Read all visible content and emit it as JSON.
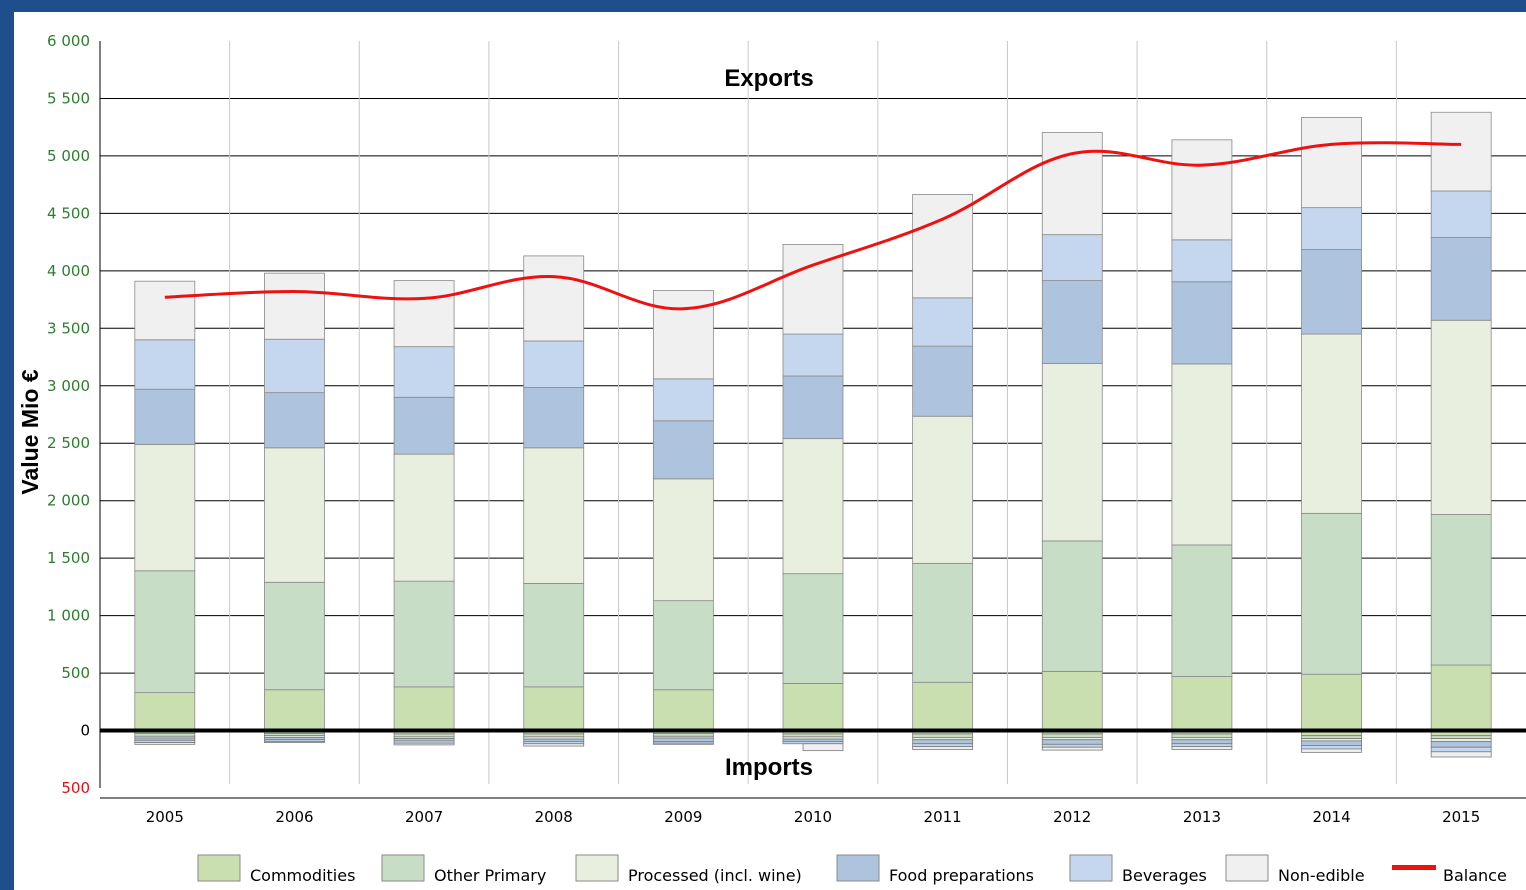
{
  "chart_data": {
    "type": "bar",
    "stacked": true,
    "annotations": {
      "top": "Exports",
      "bottom": "Imports"
    },
    "ylabel": "Value Mio €",
    "ylim": [
      -500,
      6000
    ],
    "y_ticks": [
      {
        "value": 6000,
        "label": "6 000"
      },
      {
        "value": 5500,
        "label": "5 500"
      },
      {
        "value": 5000,
        "label": "5 000"
      },
      {
        "value": 4500,
        "label": "4 500"
      },
      {
        "value": 4000,
        "label": "4 000"
      },
      {
        "value": 3500,
        "label": "3 500"
      },
      {
        "value": 3000,
        "label": "3 000"
      },
      {
        "value": 2500,
        "label": "2 500"
      },
      {
        "value": 2000,
        "label": "2 000"
      },
      {
        "value": 1500,
        "label": "1 500"
      },
      {
        "value": 1000,
        "label": "1 000"
      },
      {
        "value": 500,
        "label": "500"
      },
      {
        "value": 0,
        "label": "0"
      },
      {
        "value": -500,
        "label": "500"
      }
    ],
    "grid": true,
    "legend_position": "bottom",
    "categories": [
      "2005",
      "2006",
      "2007",
      "2008",
      "2009",
      "2010",
      "2011",
      "2012",
      "2013",
      "2014",
      "2015"
    ],
    "export_series": [
      {
        "name": "Commodities",
        "color": "#c9dfb0",
        "values": [
          330,
          355,
          380,
          380,
          355,
          410,
          420,
          515,
          470,
          490,
          570
        ]
      },
      {
        "name": "Other Primary",
        "color": "#c7ddc5",
        "values": [
          1060,
          935,
          920,
          900,
          775,
          955,
          1035,
          1135,
          1145,
          1400,
          1310
        ]
      },
      {
        "name": "Processed (incl. wine)",
        "color": "#e9efdf",
        "values": [
          1100,
          1170,
          1105,
          1180,
          1060,
          1175,
          1280,
          1545,
          1575,
          1560,
          1690
        ]
      },
      {
        "name": "Food preparations",
        "color": "#adc3de",
        "values": [
          480,
          480,
          495,
          525,
          505,
          545,
          610,
          720,
          715,
          735,
          720
        ]
      },
      {
        "name": "Beverages",
        "color": "#c5d7ee",
        "values": [
          430,
          465,
          440,
          405,
          365,
          365,
          420,
          400,
          365,
          365,
          405
        ]
      },
      {
        "name": "Non-edible",
        "color": "#f0f0f0",
        "values": [
          510,
          575,
          575,
          740,
          770,
          780,
          900,
          890,
          870,
          785,
          685
        ]
      }
    ],
    "import_series": [
      {
        "name": "Commodities",
        "color": "#c9dfb0",
        "values": [
          -25,
          -25,
          -30,
          -30,
          -25,
          -30,
          -30,
          -30,
          -30,
          -45,
          -45
        ]
      },
      {
        "name": "Other Primary",
        "color": "#c7ddc5",
        "values": [
          -25,
          -20,
          -25,
          -25,
          -25,
          -25,
          -30,
          -30,
          -30,
          -25,
          -25
        ]
      },
      {
        "name": "Processed (incl. wine)",
        "color": "#e9efdf",
        "values": [
          -15,
          -15,
          -15,
          -20,
          -15,
          -20,
          -20,
          -20,
          -20,
          -20,
          -25
        ]
      },
      {
        "name": "Food preparations",
        "color": "#adc3de",
        "values": [
          -20,
          -20,
          -20,
          -20,
          -30,
          -20,
          -35,
          -40,
          -35,
          -40,
          -50
        ]
      },
      {
        "name": "Beverages",
        "color": "#c5d7ee",
        "values": [
          -20,
          -15,
          -20,
          -20,
          -15,
          -20,
          -25,
          -25,
          -25,
          -30,
          -40
        ]
      },
      {
        "name": "Non-edible",
        "color": "#f0f0f0",
        "values": [
          -15,
          -10,
          -15,
          -20,
          -10,
          -60,
          -25,
          -25,
          -25,
          -30,
          -45
        ]
      }
    ],
    "balance": {
      "name": "Balance",
      "color": "#ee1111",
      "values": [
        3770,
        3820,
        3760,
        3950,
        3670,
        4050,
        4450,
        5020,
        4920,
        5100,
        5100
      ]
    },
    "legend": [
      {
        "label": "Commodities",
        "color": "#c9dfb0",
        "kind": "box"
      },
      {
        "label": "Other Primary",
        "color": "#c7ddc5",
        "kind": "box"
      },
      {
        "label": "Processed (incl. wine)",
        "color": "#e9efdf",
        "kind": "box"
      },
      {
        "label": "Food preparations",
        "color": "#adc3de",
        "kind": "box"
      },
      {
        "label": "Beverages",
        "color": "#c5d7ee",
        "kind": "box"
      },
      {
        "label": "Non-edible",
        "color": "#f0f0f0",
        "kind": "box"
      },
      {
        "label": "Balance",
        "color": "#ee1111",
        "kind": "line"
      }
    ]
  }
}
